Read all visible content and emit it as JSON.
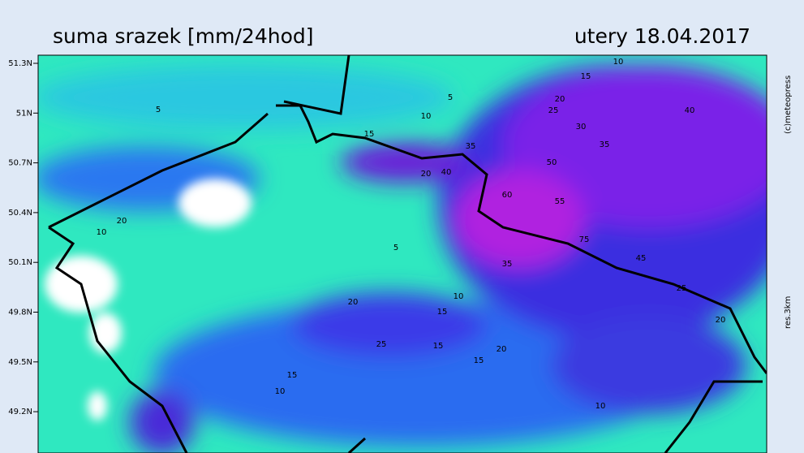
{
  "header": {
    "title": "suma srazek [mm/24hod]",
    "date": "utery 18.04.2017"
  },
  "latitude_labels": [
    "51.3N",
    "51N",
    "50.7N",
    "50.4N",
    "50.1N",
    "49.8N",
    "49.5N",
    "49.2N"
  ],
  "copyright": "(c)meteopress",
  "resolution": "res.3km",
  "contour_labels": [
    10,
    15,
    20,
    25,
    30,
    35,
    40,
    5,
    5,
    10,
    15,
    20,
    35,
    40,
    50,
    60,
    55,
    75,
    45,
    35,
    25,
    20,
    15,
    10,
    5,
    20,
    15,
    10,
    20,
    25,
    15,
    10,
    20,
    15,
    10
  ]
}
